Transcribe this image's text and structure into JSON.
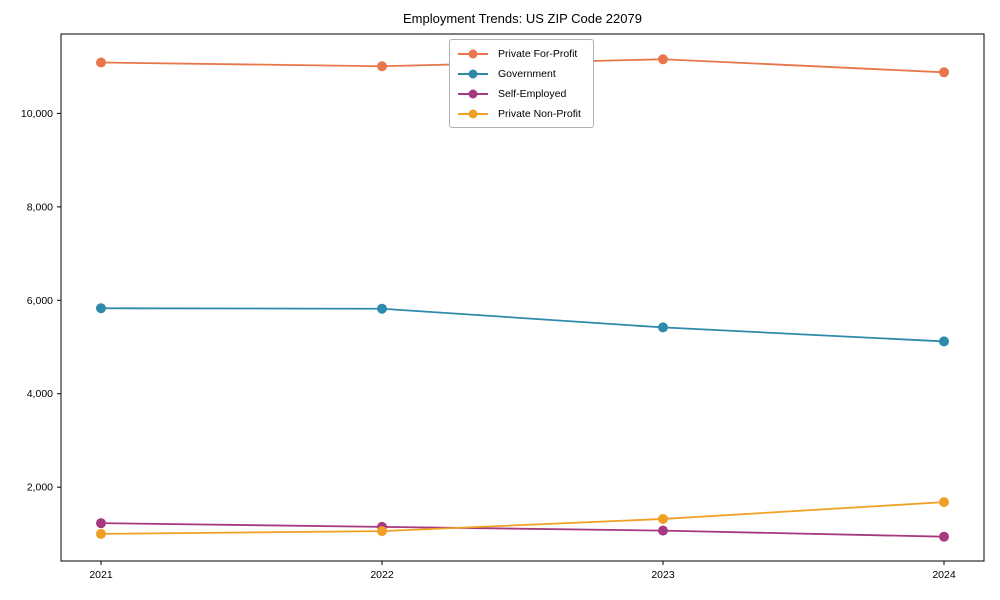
{
  "chart_data": {
    "type": "line",
    "title": "Employment Trends: US ZIP Code 22079",
    "xlabel": "",
    "ylabel": "",
    "x": [
      "2021",
      "2022",
      "2023",
      "2024"
    ],
    "series": [
      {
        "name": "Private For-Profit",
        "color": "#e8764a",
        "values": [
          11090,
          11010,
          11160,
          10880
        ]
      },
      {
        "name": "Government",
        "color": "#2e8aab",
        "values": [
          5830,
          5820,
          5420,
          5120
        ]
      },
      {
        "name": "Self-Employed",
        "color": "#a63a80",
        "values": [
          1230,
          1150,
          1070,
          940
        ]
      },
      {
        "name": "Private Non-Profit",
        "color": "#f0a125",
        "values": [
          1000,
          1060,
          1320,
          1680
        ]
      }
    ],
    "yticks": [
      {
        "value": 2000,
        "label": "2,000"
      },
      {
        "value": 4000,
        "label": "4,000"
      },
      {
        "value": 6000,
        "label": "6,000"
      },
      {
        "value": 8000,
        "label": "8,000"
      },
      {
        "value": 10000,
        "label": "10,000"
      }
    ],
    "ylim": [
      420,
      11700
    ],
    "grid": false,
    "marker": "circle",
    "legend_position": "upper center",
    "axis_color": "#000000",
    "background_color": "#ffffff"
  }
}
